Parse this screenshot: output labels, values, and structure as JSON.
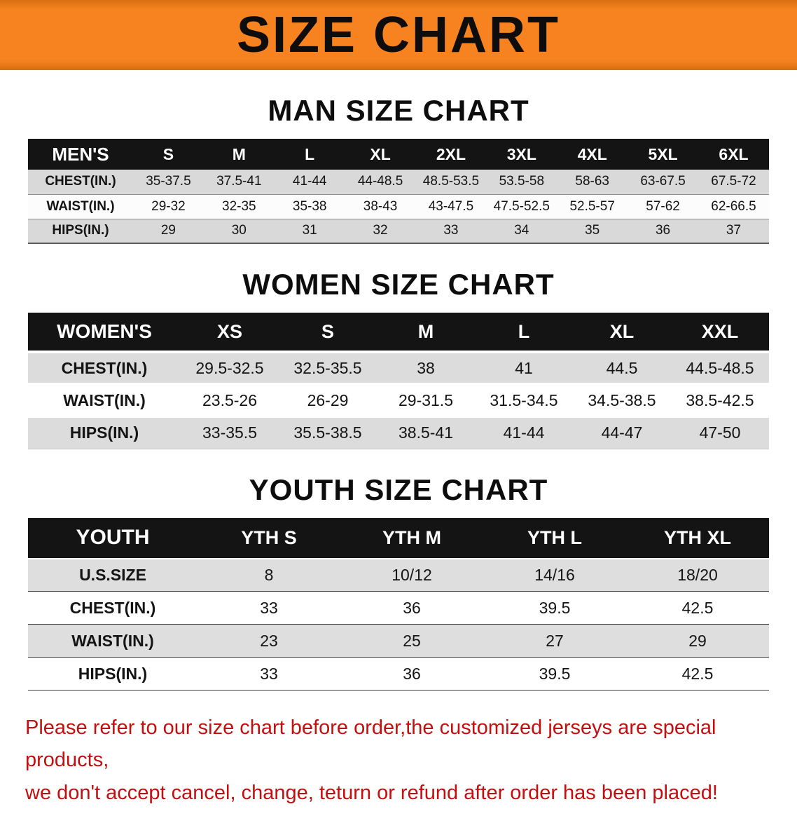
{
  "banner": {
    "title": "SIZE CHART"
  },
  "colors": {
    "banner_bg": "#f6831f",
    "header_bg": "#141414",
    "stripe": "#d9d9d9",
    "disclaimer_red": "#c40f0f"
  },
  "sections": {
    "men": {
      "heading": "MAN SIZE CHART",
      "table": {
        "header": [
          "MEN'S",
          "S",
          "M",
          "L",
          "XL",
          "2XL",
          "3XL",
          "4XL",
          "5XL",
          "6XL"
        ],
        "rows": [
          [
            "CHEST(IN.)",
            "35-37.5",
            "37.5-41",
            "41-44",
            "44-48.5",
            "48.5-53.5",
            "53.5-58",
            "58-63",
            "63-67.5",
            "67.5-72"
          ],
          [
            "WAIST(IN.)",
            "29-32",
            "32-35",
            "35-38",
            "38-43",
            "43-47.5",
            "47.5-52.5",
            "52.5-57",
            "57-62",
            "62-66.5"
          ],
          [
            "HIPS(IN.)",
            "29",
            "30",
            "31",
            "32",
            "33",
            "34",
            "35",
            "36",
            "37"
          ]
        ]
      }
    },
    "women": {
      "heading": "WOMEN SIZE CHART",
      "table": {
        "header": [
          "WOMEN'S",
          "XS",
          "S",
          "M",
          "L",
          "XL",
          "XXL"
        ],
        "rows": [
          [
            "CHEST(IN.)",
            "29.5-32.5",
            "32.5-35.5",
            "38",
            "41",
            "44.5",
            "44.5-48.5"
          ],
          [
            "WAIST(IN.)",
            "23.5-26",
            "26-29",
            "29-31.5",
            "31.5-34.5",
            "34.5-38.5",
            "38.5-42.5"
          ],
          [
            "HIPS(IN.)",
            "33-35.5",
            "35.5-38.5",
            "38.5-41",
            "41-44",
            "44-47",
            "47-50"
          ]
        ]
      }
    },
    "youth": {
      "heading": "YOUTH SIZE CHART",
      "table": {
        "header": [
          "YOUTH",
          "YTH S",
          "YTH M",
          "YTH L",
          "YTH XL"
        ],
        "rows": [
          [
            "U.S.SIZE",
            "8",
            "10/12",
            "14/16",
            "18/20"
          ],
          [
            "CHEST(IN.)",
            "33",
            "36",
            "39.5",
            "42.5"
          ],
          [
            "WAIST(IN.)",
            "23",
            "25",
            "27",
            "29"
          ],
          [
            "HIPS(IN.)",
            "33",
            "36",
            "39.5",
            "42.5"
          ]
        ]
      }
    }
  },
  "disclaimer": {
    "line1": "Please refer to our size chart before order,the customized jerseys are special products,",
    "line2": "we don't accept cancel, change, teturn or refund after order has been placed!"
  }
}
